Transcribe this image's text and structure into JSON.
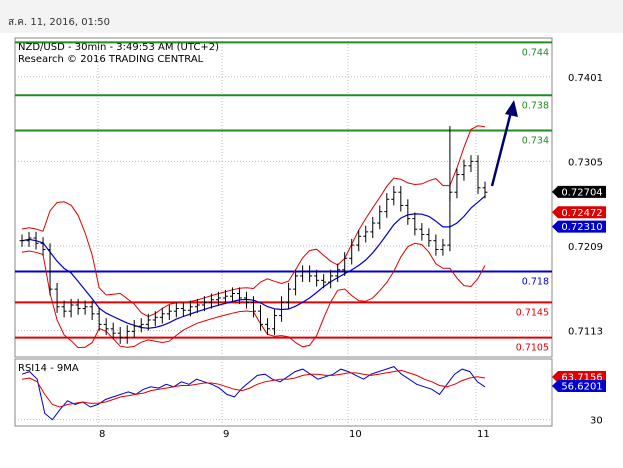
{
  "timestamp": "ส.ค. 11, 2016, 01:50",
  "colors": {
    "resistance": "#228b22",
    "pivot": "#0000cc",
    "support": "#e00000",
    "bollinger": "#e00000",
    "ma": "#0000cc",
    "candles": "#000000",
    "arrow": "#00006e",
    "grid": "#bbbbbb"
  },
  "chart_data": [
    {
      "type": "ohlc",
      "title": "NZD/USD - 30min - 3:49:53 AM (UTC+2)",
      "subtitle": "Research © 2016 TRADING CENTRAL",
      "ylim": [
        0.7083,
        0.7445
      ],
      "y_ticks": [
        "0.7401",
        "0.7305",
        "0.7209",
        "0.7113"
      ],
      "x_ticks": [
        "8",
        "9",
        "10",
        "11"
      ],
      "grid": true,
      "levels": [
        {
          "label": "0.744",
          "value": 0.744,
          "kind": "resistance"
        },
        {
          "label": "0.738",
          "value": 0.738,
          "kind": "resistance"
        },
        {
          "label": "0.734",
          "value": 0.734,
          "kind": "resistance"
        },
        {
          "label": "0.718",
          "value": 0.718,
          "kind": "pivot"
        },
        {
          "label": "0.7145",
          "value": 0.7145,
          "kind": "support"
        },
        {
          "label": "0.7105",
          "value": 0.7105,
          "kind": "support"
        }
      ],
      "price_tags": [
        {
          "label": "0.72704",
          "value": 0.72704,
          "color": "#000000"
        },
        {
          "label": "0.72472",
          "value": 0.72472,
          "color": "#e00000"
        },
        {
          "label": "0.72310",
          "value": 0.7231,
          "color": "#0000cc"
        }
      ],
      "close_series": [
        0.7215,
        0.7218,
        0.7212,
        0.7205,
        0.716,
        0.714,
        0.7135,
        0.7142,
        0.7138,
        0.714,
        0.7132,
        0.712,
        0.7115,
        0.711,
        0.7105,
        0.7112,
        0.7118,
        0.712,
        0.7125,
        0.7128,
        0.7132,
        0.7135,
        0.7138,
        0.7136,
        0.714,
        0.7142,
        0.7145,
        0.7148,
        0.715,
        0.7152,
        0.7155,
        0.715,
        0.7145,
        0.7135,
        0.712,
        0.7115,
        0.713,
        0.7145,
        0.716,
        0.7175,
        0.718,
        0.7175,
        0.717,
        0.7168,
        0.7175,
        0.7182,
        0.7195,
        0.721,
        0.722,
        0.7225,
        0.7235,
        0.7248,
        0.7262,
        0.727,
        0.7255,
        0.724,
        0.7228,
        0.7222,
        0.7215,
        0.7205,
        0.721,
        0.727,
        0.729,
        0.73,
        0.7305,
        0.7275,
        0.727
      ],
      "annotations": [
        {
          "type": "arrow",
          "direction": "up",
          "target": 0.738
        }
      ]
    },
    {
      "type": "line",
      "title": "RSI14 - 9MA",
      "ylim": [
        25,
        78
      ],
      "y_ticks": [
        "30"
      ],
      "x_ticks": [
        "8",
        "9",
        "10",
        "11"
      ],
      "price_tags": [
        {
          "label": "63.7156",
          "value": 63.7156,
          "color": "#e00000"
        },
        {
          "label": "56.6201",
          "value": 56.6201,
          "color": "#0000cc"
        }
      ],
      "series": [
        {
          "color": "#0000cc",
          "values": [
            66,
            68,
            62,
            35,
            30,
            38,
            45,
            42,
            44,
            40,
            42,
            46,
            48,
            50,
            52,
            50,
            54,
            56,
            55,
            58,
            56,
            60,
            58,
            62,
            60,
            58,
            55,
            50,
            48,
            55,
            60,
            65,
            66,
            62,
            60,
            64,
            68,
            70,
            66,
            62,
            64,
            66,
            70,
            68,
            65,
            62,
            66,
            68,
            70,
            72,
            66,
            62,
            58,
            56,
            54,
            50,
            58,
            66,
            70,
            68,
            60,
            56
          ]
        },
        {
          "color": "#e00000",
          "values": [
            62,
            63,
            60,
            50,
            42,
            40,
            42,
            43,
            44,
            43,
            43,
            44,
            46,
            48,
            49,
            50,
            51,
            53,
            54,
            55,
            56,
            57,
            57,
            58,
            59,
            59,
            58,
            56,
            54,
            53,
            55,
            58,
            60,
            61,
            62,
            62,
            63,
            65,
            66,
            66,
            65,
            65,
            66,
            67,
            67,
            66,
            65,
            66,
            67,
            68,
            69,
            67,
            65,
            62,
            60,
            57,
            56,
            58,
            61,
            63,
            64,
            63
          ]
        }
      ]
    }
  ]
}
